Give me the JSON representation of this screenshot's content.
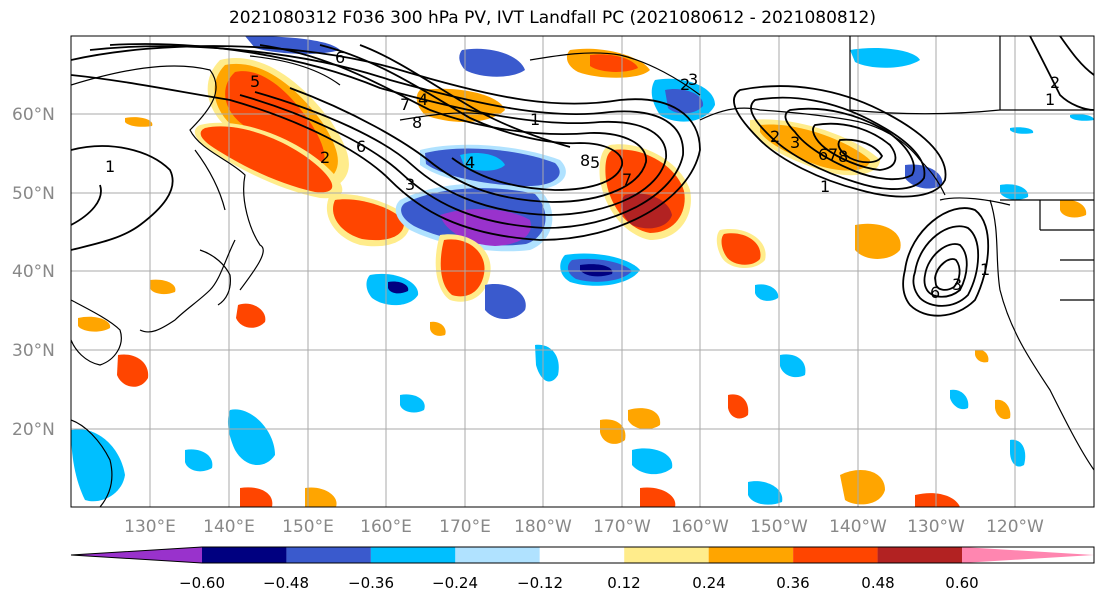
{
  "title": "2021080312 F036 300 hPa PV, IVT Landfall PC (2021080612 - 2021080812)",
  "axes": {
    "lon_labels": [
      "130°E",
      "140°E",
      "150°E",
      "160°E",
      "170°E",
      "180°W",
      "170°W",
      "160°W",
      "150°W",
      "140°W",
      "130°W",
      "120°W"
    ],
    "lat_labels": [
      "60°N",
      "50°N",
      "40°N",
      "30°N",
      "20°N"
    ]
  },
  "colorbar": {
    "ticks": [
      "−0.60",
      "−0.48",
      "−0.36",
      "−0.24",
      "−0.12",
      "0.12",
      "0.24",
      "0.36",
      "0.48",
      "0.60"
    ],
    "colors": [
      "#9932CC",
      "#000080",
      "#3A5ACD",
      "#00BFFF",
      "#B0E2FF",
      "#FFFFFF",
      "#FFEC8B",
      "#FFA500",
      "#FF4500",
      "#B22222",
      "#FF86B0"
    ]
  },
  "contour_labels": [
    "1",
    "2",
    "3",
    "4",
    "5",
    "6",
    "7",
    "8",
    "5",
    "6",
    "7",
    "8",
    "1",
    "2",
    "3",
    "4",
    "1",
    "2",
    "3",
    "6",
    "7",
    "8",
    "1",
    "6",
    "3",
    "1",
    "2",
    "3",
    "4",
    "5",
    "1",
    "2"
  ],
  "colors": {
    "coast": "#000000",
    "grid": "#aaaaaa",
    "contour": "#000000"
  }
}
